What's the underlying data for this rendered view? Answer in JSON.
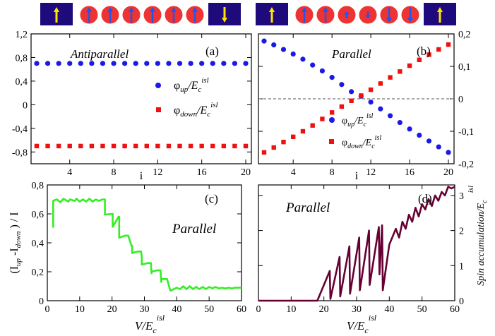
{
  "figure": {
    "panels": {
      "a": {
        "tag": "(a)",
        "title": "Antiparallel"
      },
      "b": {
        "tag": "(b)",
        "title": "Parallel"
      },
      "c": {
        "tag": "(c)",
        "title": "Parallel"
      },
      "d": {
        "tag": "(d)",
        "title": "Parallel"
      }
    },
    "legend": {
      "up": {
        "phi": "φ",
        "sub": "up",
        "mid": "/E",
        "csub": "c",
        "sup": "isl"
      },
      "down": {
        "phi": "φ",
        "sub": "down",
        "mid": "/E",
        "csub": "c",
        "sup": "isl"
      }
    },
    "xlabel_top": "i",
    "xlabel_bottom": {
      "main": "V/E",
      "sub": "c",
      "sup": "isl"
    },
    "ylabel_c": {
      "open": "(I",
      "up": "up",
      "minus": " -I",
      "down": "down",
      "close": " ) / I"
    },
    "ylabel_d": "Spin accumulation/E",
    "ylabel_d_sub": "c",
    "ylabel_d_sup": "isl",
    "colors": {
      "up": "#1a1ae6",
      "down": "#ee1111",
      "green": "#33ee22",
      "maroon": "#660033",
      "box": "#1e0a7a",
      "circle": "#ee3333",
      "arrow_yellow": "#ffe400",
      "arrow_blue": "#2255ee"
    },
    "schematic": {
      "left": {
        "lead_left": "up",
        "spins": [
          "up",
          "up",
          "up",
          "up",
          "up",
          "up"
        ],
        "lead_right": "down"
      },
      "right": {
        "lead_left": "up",
        "spins": [
          "up-big",
          "up-big",
          "up-small",
          "down-small",
          "down-big",
          "down-big"
        ],
        "lead_right": "up"
      }
    }
  },
  "chart_data": [
    {
      "panel": "a",
      "type": "scatter",
      "x_ticks": [
        4,
        8,
        12,
        16,
        20
      ],
      "y_ticks": [
        "1,2",
        "0,8",
        "0,4",
        "0",
        "-0,4",
        "-0,8"
      ],
      "y_tick_values": [
        1.2,
        0.8,
        0.4,
        0,
        -0.4,
        -0.8
      ],
      "xlim": [
        1,
        20
      ],
      "ylim": [
        -1.0,
        1.2
      ],
      "series": [
        {
          "name": "φ_up/E_c^isl",
          "marker": "circle",
          "color": "up",
          "x": [
            1,
            2,
            3,
            4,
            5,
            6,
            7,
            8,
            9,
            10,
            11,
            12,
            13,
            14,
            15,
            16,
            17,
            18,
            19,
            20
          ],
          "y": [
            0.7,
            0.7,
            0.7,
            0.7,
            0.7,
            0.7,
            0.7,
            0.7,
            0.7,
            0.7,
            0.7,
            0.7,
            0.7,
            0.7,
            0.7,
            0.7,
            0.7,
            0.7,
            0.7,
            0.7
          ]
        },
        {
          "name": "φ_down/E_c^isl",
          "marker": "square",
          "color": "down",
          "x": [
            1,
            2,
            3,
            4,
            5,
            6,
            7,
            8,
            9,
            10,
            11,
            12,
            13,
            14,
            15,
            16,
            17,
            18,
            19,
            20
          ],
          "y": [
            -0.7,
            -0.7,
            -0.7,
            -0.7,
            -0.7,
            -0.7,
            -0.7,
            -0.7,
            -0.7,
            -0.7,
            -0.7,
            -0.7,
            -0.7,
            -0.7,
            -0.7,
            -0.7,
            -0.7,
            -0.7,
            -0.7,
            -0.7
          ]
        }
      ]
    },
    {
      "panel": "b",
      "type": "scatter",
      "x_ticks": [
        4,
        8,
        12,
        16,
        20
      ],
      "y_ticks": [
        "0,2",
        "0,1",
        "0",
        "-0,1",
        "-0,2"
      ],
      "y_tick_values": [
        0.2,
        0.1,
        0,
        -0.1,
        -0.2
      ],
      "xlim": [
        1,
        20
      ],
      "ylim": [
        -0.2,
        0.2
      ],
      "zero_line": true,
      "series": [
        {
          "name": "φ_up/E_c^isl",
          "marker": "circle",
          "color": "up",
          "x": [
            1,
            2,
            3,
            4,
            5,
            6,
            7,
            8,
            9,
            10,
            11,
            12,
            13,
            14,
            15,
            16,
            17,
            18,
            19,
            20
          ],
          "y": [
            0.178,
            0.166,
            0.152,
            0.138,
            0.122,
            0.104,
            0.086,
            0.066,
            0.044,
            0.022,
            0.008,
            -0.01,
            -0.031,
            -0.052,
            -0.073,
            -0.093,
            -0.112,
            -0.13,
            -0.148,
            -0.165
          ]
        },
        {
          "name": "φ_down/E_c^isl",
          "marker": "square",
          "color": "down",
          "x": [
            1,
            2,
            3,
            4,
            5,
            6,
            7,
            8,
            9,
            10,
            11,
            12,
            13,
            14,
            15,
            16,
            17,
            18,
            19,
            20
          ],
          "y": [
            -0.165,
            -0.15,
            -0.133,
            -0.117,
            -0.1,
            -0.082,
            -0.062,
            -0.042,
            -0.024,
            -0.006,
            0.01,
            0.028,
            0.047,
            0.066,
            0.084,
            0.102,
            0.12,
            0.136,
            0.152,
            0.167
          ]
        }
      ]
    },
    {
      "panel": "c",
      "type": "line",
      "x_ticks": [
        0,
        10,
        20,
        30,
        40,
        50,
        60
      ],
      "y_ticks": [
        "0,8",
        "0,6",
        "0,4",
        "0,2",
        "0"
      ],
      "y_tick_values": [
        0.8,
        0.6,
        0.4,
        0.2,
        0
      ],
      "xlim": [
        0,
        60
      ],
      "ylim": [
        0,
        0.8
      ],
      "series": [
        {
          "color": "green",
          "x": [
            1.8,
            1.8,
            2.3,
            3.0,
            4.0,
            5.0,
            6.5,
            7.0,
            8.5,
            9.0,
            10.0,
            11.0,
            12.0,
            13.0,
            14.0,
            15.0,
            16.0,
            17.0,
            17.8,
            17.8,
            20.0,
            20.2,
            20.2,
            22.0,
            22.2,
            22.2,
            24.0,
            25.0,
            26.0,
            26.2,
            26.2,
            28.0,
            29.0,
            29.2,
            29.2,
            31.0,
            32.0,
            32.2,
            32.2,
            34.0,
            35.0,
            35.2,
            35.2,
            37.0,
            38.0,
            38.2,
            40.0,
            41.0,
            42.0,
            43.0,
            44.0,
            45.0,
            46.0,
            47.0,
            48.0,
            49.0,
            50.0,
            51.0,
            52.0,
            53.0,
            54.0,
            55.0,
            56.0,
            57.0,
            58.0,
            59.0,
            60.0
          ],
          "y": [
            0.505,
            0.69,
            0.695,
            0.7,
            0.68,
            0.705,
            0.685,
            0.7,
            0.69,
            0.705,
            0.685,
            0.7,
            0.685,
            0.705,
            0.685,
            0.7,
            0.69,
            0.7,
            0.7,
            0.595,
            0.6,
            0.6,
            0.51,
            0.58,
            0.58,
            0.435,
            0.45,
            0.45,
            0.38,
            0.38,
            0.33,
            0.34,
            0.34,
            0.3,
            0.25,
            0.26,
            0.26,
            0.19,
            0.2,
            0.21,
            0.21,
            0.13,
            0.15,
            0.15,
            0.07,
            0.07,
            0.09,
            0.08,
            0.1,
            0.08,
            0.1,
            0.08,
            0.095,
            0.08,
            0.095,
            0.08,
            0.095,
            0.085,
            0.095,
            0.085,
            0.09,
            0.085,
            0.09,
            0.085,
            0.09,
            0.09,
            0.09
          ]
        }
      ]
    },
    {
      "panel": "d",
      "type": "line",
      "x_ticks": [
        0,
        10,
        20,
        30,
        40,
        50,
        60
      ],
      "y_ticks": [
        "3",
        "2",
        "1",
        "0"
      ],
      "y_tick_values": [
        3,
        2,
        1,
        0
      ],
      "xlim": [
        0,
        60
      ],
      "ylim": [
        0,
        3.3
      ],
      "series": [
        {
          "color": "maroon",
          "x": [
            0,
            18.0,
            21.8,
            22.0,
            24.8,
            25.0,
            27.8,
            28.0,
            30.8,
            31.0,
            33.8,
            34.0,
            36.8,
            37.0,
            37.8,
            38.0,
            40.0,
            42.0,
            43.0,
            44.0,
            45.0,
            46.0,
            47.0,
            48.0,
            49.0,
            50.0,
            51.0,
            52.0,
            53.0,
            54.0,
            55.0,
            56.0,
            57.0,
            58.0,
            59.0,
            60.0
          ],
          "y": [
            0,
            0,
            0.85,
            0.05,
            1.25,
            0.12,
            1.55,
            0.2,
            1.8,
            0.3,
            2.0,
            0.45,
            2.1,
            0.75,
            2.15,
            0.3,
            1.6,
            2.05,
            1.8,
            2.25,
            2.05,
            2.45,
            2.25,
            2.65,
            2.4,
            2.75,
            2.6,
            2.9,
            2.7,
            3.0,
            2.85,
            3.1,
            3.0,
            3.25,
            3.2,
            3.25
          ]
        }
      ]
    }
  ]
}
